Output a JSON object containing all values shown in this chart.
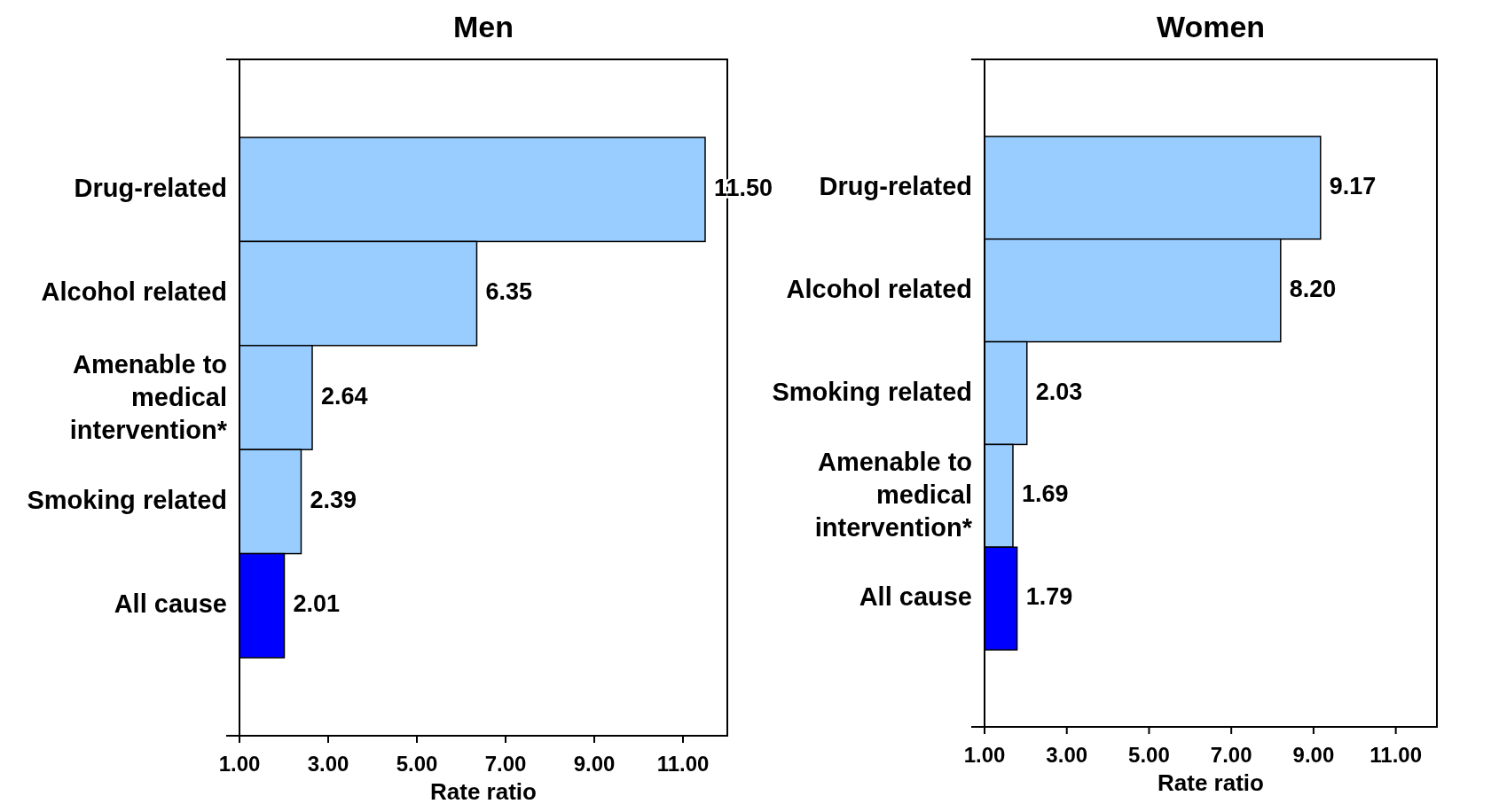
{
  "chart_data": [
    {
      "type": "bar",
      "orientation": "horizontal",
      "title": "Men",
      "xlabel": "Rate ratio",
      "categories": [
        "Drug-related",
        "Alcohol related",
        "Amenable to medical intervention*",
        "Smoking related",
        "All cause"
      ],
      "values": [
        11.5,
        6.35,
        2.64,
        2.39,
        2.01
      ],
      "value_labels": [
        "11.50",
        "6.35",
        "2.64",
        "2.39",
        "2.01"
      ],
      "colors": [
        "#99ccff",
        "#99ccff",
        "#99ccff",
        "#99ccff",
        "#0000ff"
      ],
      "xlim": [
        1,
        12
      ],
      "xticks": [
        {
          "value": 1,
          "label": "1.00"
        },
        {
          "value": 3,
          "label": "3.00"
        },
        {
          "value": 5,
          "label": "5.00"
        },
        {
          "value": 7,
          "label": "7.00"
        },
        {
          "value": 9,
          "label": "9.00"
        },
        {
          "value": 11,
          "label": "11.00"
        }
      ],
      "grid": false
    },
    {
      "type": "bar",
      "orientation": "horizontal",
      "title": "Women",
      "xlabel": "Rate ratio",
      "categories": [
        "Drug-related",
        "Alcohol related",
        "Smoking related",
        "Amenable to medical intervention*",
        "All cause"
      ],
      "values": [
        9.17,
        8.2,
        2.03,
        1.69,
        1.79
      ],
      "value_labels": [
        "9.17",
        "8.20",
        "2.03",
        "1.69",
        "1.79"
      ],
      "colors": [
        "#99ccff",
        "#99ccff",
        "#99ccff",
        "#99ccff",
        "#0000ff"
      ],
      "xlim": [
        1,
        12
      ],
      "xticks": [
        {
          "value": 1,
          "label": "1.00"
        },
        {
          "value": 3,
          "label": "3.00"
        },
        {
          "value": 5,
          "label": "5.00"
        },
        {
          "value": 7,
          "label": "7.00"
        },
        {
          "value": 9,
          "label": "9.00"
        },
        {
          "value": 11,
          "label": "11.00"
        }
      ],
      "grid": false
    }
  ]
}
